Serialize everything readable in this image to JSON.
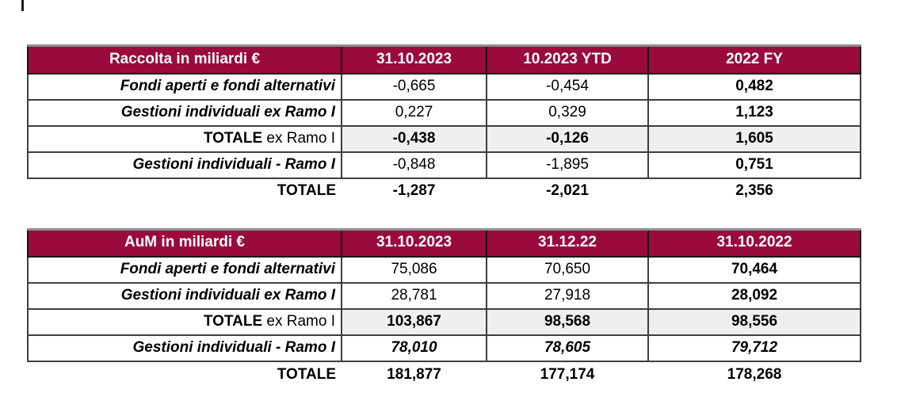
{
  "colors": {
    "header_bg": "#9A0A3C",
    "header_text": "#FFFFFF",
    "shaded_cell_bg": "#EFEFEF",
    "grid_border": "#3E3E3E",
    "header_border": "#141414",
    "outer_top_border": "#8F8F8F",
    "body_text": "#000000",
    "page_bg": "#FFFFFF"
  },
  "tables": [
    {
      "name": "raccolta",
      "header": {
        "label": "Raccolta in miliardi €",
        "columns": [
          "31.10.2023",
          "10.2023 YTD",
          "2022 FY"
        ]
      },
      "rows": [
        {
          "label": "Fondi aperti e fondi alternativi",
          "label_style": "bold-italic",
          "values": [
            "-0,665",
            "-0,454",
            "0,482"
          ],
          "value_styles": [
            "regular",
            "regular",
            "bold"
          ]
        },
        {
          "label": "Gestioni individuali ex Ramo I",
          "label_style": "bold-italic",
          "values": [
            "0,227",
            "0,329",
            "1,123"
          ],
          "value_styles": [
            "regular",
            "regular",
            "bold"
          ]
        },
        {
          "label_bold": "TOTALE",
          "label_rest": " ex Ramo I",
          "label_style": "bold",
          "shaded": true,
          "values": [
            "-0,438",
            "-0,126",
            "1,605"
          ],
          "value_styles": [
            "bold",
            "bold",
            "bold"
          ]
        },
        {
          "label": "Gestioni individuali - Ramo I",
          "label_style": "bold-italic",
          "values": [
            "-0,848",
            "-1,895",
            "0,751"
          ],
          "value_styles": [
            "regular",
            "regular",
            "bold"
          ]
        },
        {
          "label": "TOTALE",
          "label_style": "bold",
          "outside": true,
          "values": [
            "-1,287",
            "-2,021",
            "2,356"
          ],
          "value_styles": [
            "bold",
            "bold",
            "bold"
          ]
        }
      ]
    },
    {
      "name": "aum",
      "header": {
        "label": "AuM in miliardi €",
        "columns": [
          "31.10.2023",
          "31.12.22",
          "31.10.2022"
        ]
      },
      "rows": [
        {
          "label": "Fondi aperti e fondi alternativi",
          "label_style": "bold-italic",
          "values": [
            "75,086",
            "70,650",
            "70,464"
          ],
          "value_styles": [
            "regular",
            "regular",
            "bold"
          ]
        },
        {
          "label": "Gestioni individuali ex Ramo I",
          "label_style": "bold-italic",
          "values": [
            "28,781",
            "27,918",
            "28,092"
          ],
          "value_styles": [
            "regular",
            "regular",
            "bold"
          ]
        },
        {
          "label_bold": "TOTALE",
          "label_rest": " ex Ramo I",
          "label_style": "bold",
          "shaded": true,
          "values": [
            "103,867",
            "98,568",
            "98,556"
          ],
          "value_styles": [
            "bold",
            "bold",
            "bold"
          ]
        },
        {
          "label": "Gestioni individuali - Ramo I",
          "label_style": "bold-italic",
          "values": [
            "78,010",
            "78,605",
            "79,712"
          ],
          "value_styles": [
            "bold-italic",
            "bold-italic",
            "bold-italic"
          ]
        },
        {
          "label": "TOTALE",
          "label_style": "bold",
          "outside": true,
          "values": [
            "181,877",
            "177,174",
            "178,268"
          ],
          "value_styles": [
            "bold",
            "bold",
            "bold"
          ]
        }
      ]
    }
  ]
}
